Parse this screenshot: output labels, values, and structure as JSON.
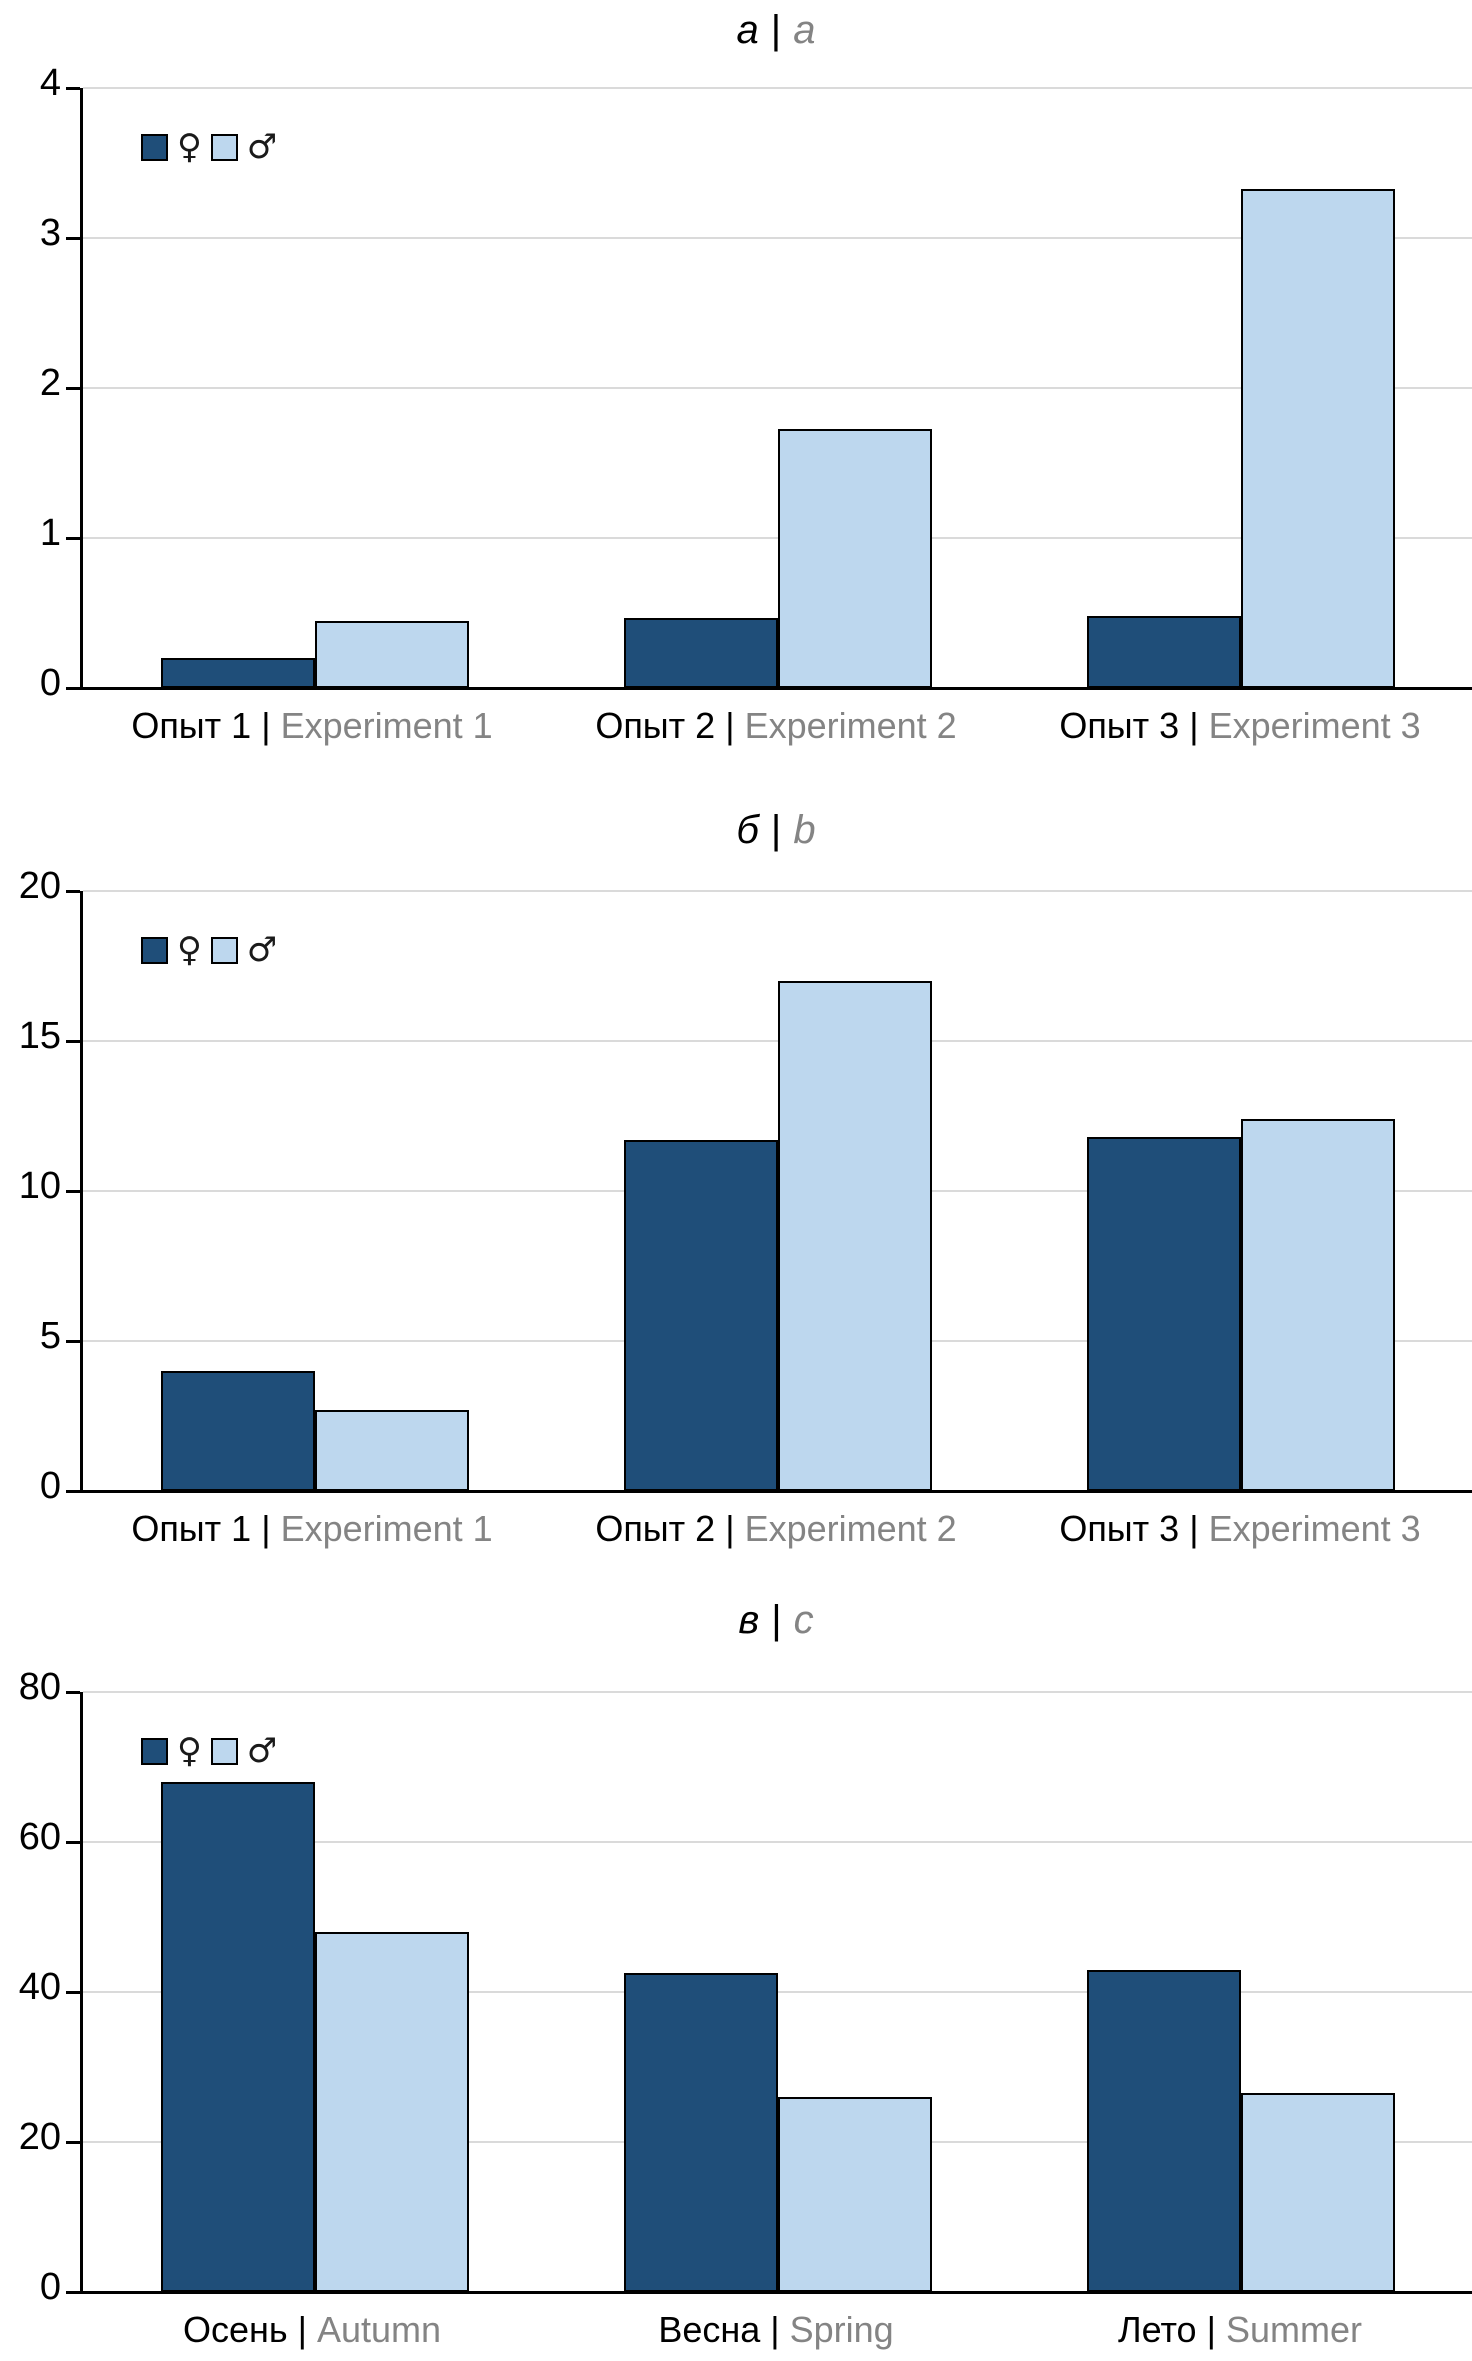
{
  "colors": {
    "female_fill": "#1F4E79",
    "male_fill": "#BDD7EE",
    "bar_border": "#000000",
    "gridline": "#DADADA",
    "axis": "#000000",
    "secondary_text": "#848484",
    "primary_text": "#000000"
  },
  "legend": {
    "female_symbol": "♀",
    "male_symbol": "♂",
    "position": "top-left-inside"
  },
  "chart_data": [
    {
      "type": "bar",
      "title": {
        "ru": "а",
        "sep": "|",
        "en": "a"
      },
      "categories": [
        {
          "ru": "Опыт 1",
          "sep": "|",
          "en": "Experiment 1"
        },
        {
          "ru": "Опыт 2",
          "sep": "|",
          "en": "Experiment 2"
        },
        {
          "ru": "Опыт 3",
          "sep": "|",
          "en": "Experiment 3"
        }
      ],
      "series": [
        {
          "name": "♀",
          "key": "female",
          "values": [
            0.2,
            0.47,
            0.48
          ]
        },
        {
          "name": "♂",
          "key": "male",
          "values": [
            0.45,
            1.73,
            3.33
          ]
        }
      ],
      "ylim": [
        0,
        4
      ],
      "yticks": [
        0,
        1,
        2,
        3,
        4
      ],
      "xlabel": "",
      "ylabel": "",
      "grid": true
    },
    {
      "type": "bar",
      "title": {
        "ru": "б",
        "sep": "|",
        "en": "b"
      },
      "categories": [
        {
          "ru": "Опыт 1",
          "sep": "|",
          "en": "Experiment 1"
        },
        {
          "ru": "Опыт 2",
          "sep": "|",
          "en": "Experiment 2"
        },
        {
          "ru": "Опыт 3",
          "sep": "|",
          "en": "Experiment 3"
        }
      ],
      "series": [
        {
          "name": "♀",
          "key": "female",
          "values": [
            4.0,
            11.7,
            11.8
          ]
        },
        {
          "name": "♂",
          "key": "male",
          "values": [
            2.7,
            17.0,
            12.4
          ]
        }
      ],
      "ylim": [
        0,
        20
      ],
      "yticks": [
        0,
        5,
        10,
        15,
        20
      ],
      "xlabel": "",
      "ylabel": "",
      "grid": true
    },
    {
      "type": "bar",
      "title": {
        "ru": "в",
        "sep": "|",
        "en": "c"
      },
      "categories": [
        {
          "ru": "Осень",
          "sep": "|",
          "en": "Autumn"
        },
        {
          "ru": "Весна",
          "sep": "|",
          "en": "Spring"
        },
        {
          "ru": "Лето",
          "sep": "|",
          "en": "Summer"
        }
      ],
      "series": [
        {
          "name": "♀",
          "key": "female",
          "values": [
            68.0,
            42.5,
            43.0
          ]
        },
        {
          "name": "♂",
          "key": "male",
          "values": [
            48.0,
            26.0,
            26.5
          ]
        }
      ],
      "ylim": [
        0,
        80
      ],
      "yticks": [
        0,
        20,
        40,
        60,
        80
      ],
      "xlabel": "",
      "ylabel": "",
      "grid": true
    }
  ]
}
